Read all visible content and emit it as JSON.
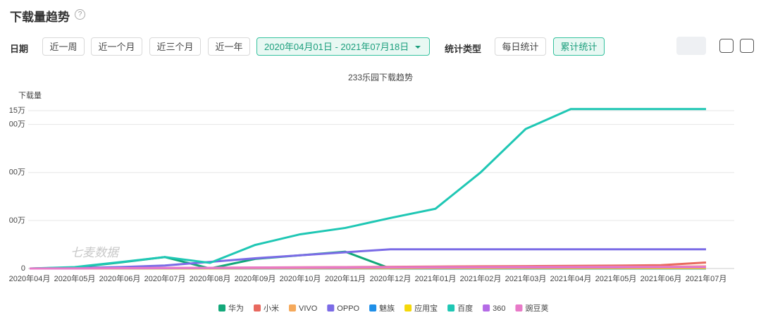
{
  "header": {
    "title": "下载量趋势",
    "help": "?"
  },
  "filters": {
    "date_label": "日期",
    "date_buttons": [
      "近一周",
      "近一个月",
      "近三个月",
      "近一年"
    ],
    "date_range": "2020年04月01日 - 2021年07月18日",
    "stat_label": "统计类型",
    "stat_buttons": [
      "每日统计",
      "累计统计"
    ]
  },
  "watermark": "七麦数据",
  "chart_data": {
    "type": "line",
    "title": "233乐园下载趋势",
    "y_label": "下载量",
    "categories": [
      "2020年04月",
      "2020年05月",
      "2020年06月",
      "2020年07月",
      "2020年08月",
      "2020年09月",
      "2020年10月",
      "2020年11月",
      "2020年12月",
      "2021年01月",
      "2021年02月",
      "2021年03月",
      "2021年04月",
      "2021年05月",
      "2021年06月",
      "2021年07月"
    ],
    "ylim": [
      0,
      1315
    ],
    "yticks": [
      0,
      {
        "value": 400,
        "label": "00万"
      },
      {
        "value": 800,
        "label": "00万"
      },
      {
        "value": 1200,
        "label": "00万"
      },
      {
        "value": 1315,
        "label": "15万"
      }
    ],
    "grid": true,
    "series": [
      {
        "name": "华为",
        "color": "#13a87a",
        "values": [
          0,
          8,
          50,
          95,
          0,
          80,
          110,
          140,
          0,
          0,
          0,
          0,
          0,
          0,
          0,
          0
        ]
      },
      {
        "name": "小米",
        "color": "#e8695f",
        "values": [
          0,
          1,
          2,
          4,
          6,
          8,
          10,
          12,
          14,
          16,
          18,
          20,
          22,
          24,
          28,
          50
        ]
      },
      {
        "name": "VIVO",
        "color": "#f5a95b",
        "values": [
          0,
          1,
          2,
          3,
          4,
          5,
          6,
          7,
          8,
          9,
          10,
          11,
          12,
          13,
          14,
          18
        ]
      },
      {
        "name": "OPPO",
        "color": "#7b6be6",
        "values": [
          0,
          4,
          12,
          25,
          55,
          85,
          110,
          135,
          160,
          160,
          160,
          160,
          160,
          160,
          160,
          160
        ]
      },
      {
        "name": "魅族",
        "color": "#1f8fe8",
        "values": [
          0,
          0,
          0,
          0,
          1,
          1,
          1,
          1,
          1,
          1,
          1,
          1,
          1,
          1,
          1,
          1
        ]
      },
      {
        "name": "应用宝",
        "color": "#f5d80a",
        "values": [
          0,
          0,
          1,
          1,
          1,
          2,
          2,
          2,
          2,
          3,
          3,
          3,
          3,
          3,
          3,
          3
        ]
      },
      {
        "name": "百度",
        "color": "#1fc7b4",
        "values": [
          0,
          12,
          53,
          95,
          47,
          196,
          285,
          338,
          421,
          498,
          800,
          1162,
          1328,
          1328,
          1328,
          1328
        ]
      },
      {
        "name": "360",
        "color": "#b46be6",
        "values": [
          0,
          1,
          2,
          3,
          4,
          5,
          6,
          6,
          7,
          7,
          8,
          8,
          9,
          9,
          10,
          10
        ]
      },
      {
        "name": "豌豆荚",
        "color": "#e87ac8",
        "values": [
          0,
          1,
          3,
          5,
          6,
          8,
          9,
          10,
          11,
          12,
          12,
          13,
          13,
          14,
          14,
          15
        ]
      }
    ]
  }
}
